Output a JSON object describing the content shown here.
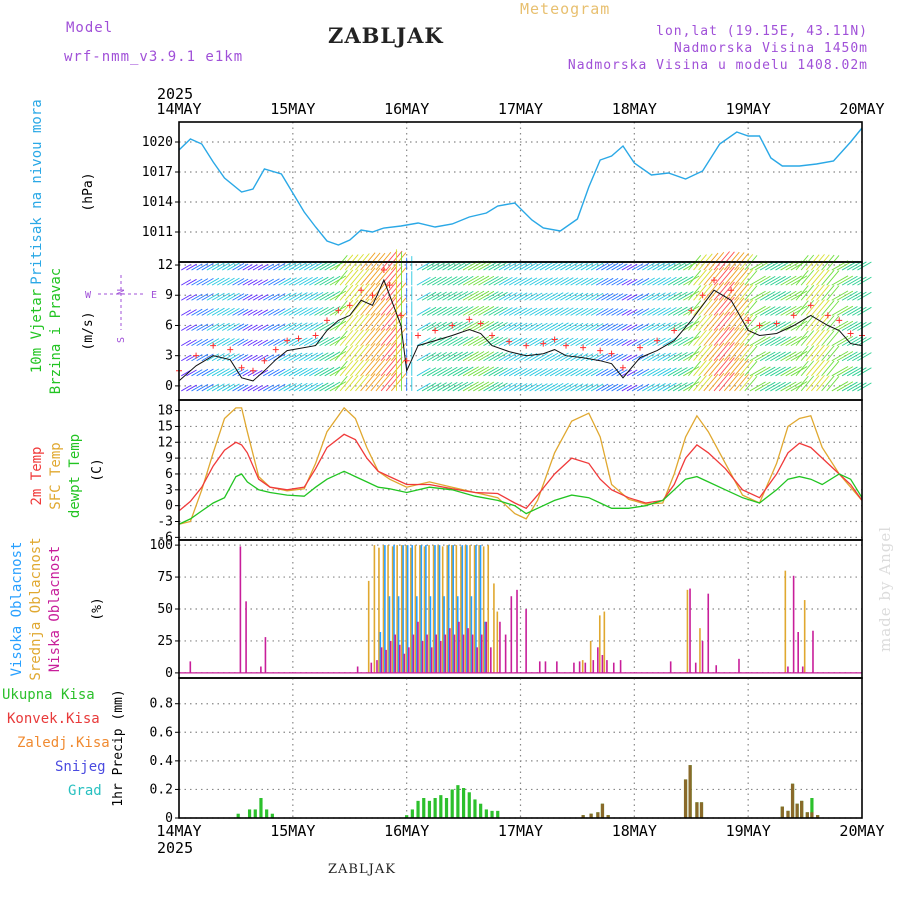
{
  "header": {
    "model_label": "Model",
    "model_name": "wrf-nmm_v3.9.1 e1km",
    "location": "ZABLJAK",
    "product": "Meteogram",
    "coords": "lon,lat (19.15E, 43.11N)",
    "altitude": "Nadmorska Visina 1450m",
    "model_altitude": "Nadmorska Visina u modelu 1408.02m",
    "footer_location": "ZABLJAK",
    "watermark": "made by Angel"
  },
  "colors": {
    "pressure": "#2aa8e6",
    "temp2m": "#f03a3a",
    "sfc": "#e0a830",
    "dewpt": "#22c422",
    "high_cloud": "#28a0ff",
    "mid_cloud": "#e0a830",
    "low_cloud": "#c81e9a",
    "total_precip": "#2cc02c",
    "conv_precip": "#e83a3a",
    "frz_precip": "#f08a30",
    "snow": "#4a4ae0",
    "hail": "#28c0c0",
    "header_purple": "#a050d8",
    "product_orange": "#e8c070"
  },
  "chart_data": [
    {
      "type": "line",
      "panel": "pressure",
      "ylabel": "Pritisak na nivou mora",
      "unit": "(hPa)",
      "x_start_label": "2025",
      "x_end_label": "2025",
      "x_ticks": [
        "14MAY",
        "15MAY",
        "16MAY",
        "17MAY",
        "18MAY",
        "19MAY",
        "20MAY"
      ],
      "xlim_days": [
        0,
        6
      ],
      "ylim": [
        1008,
        1022
      ],
      "yticks": [
        1011,
        1014,
        1017,
        1020
      ],
      "grid": true,
      "x": [
        0,
        0.1,
        0.2,
        0.3,
        0.4,
        0.55,
        0.65,
        0.75,
        0.9,
        1.0,
        1.1,
        1.2,
        1.3,
        1.4,
        1.5,
        1.6,
        1.7,
        1.8,
        1.95,
        2.1,
        2.25,
        2.4,
        2.55,
        2.7,
        2.8,
        2.95,
        3.1,
        3.2,
        3.35,
        3.5,
        3.6,
        3.7,
        3.8,
        3.9,
        4.0,
        4.15,
        4.3,
        4.45,
        4.6,
        4.75,
        4.9,
        5.0,
        5.1,
        5.2,
        5.3,
        5.45,
        5.6,
        5.75,
        5.9,
        6.0
      ],
      "values": [
        1019.2,
        1020.3,
        1019.8,
        1018.0,
        1016.4,
        1015.0,
        1015.3,
        1017.3,
        1016.8,
        1014.9,
        1013.0,
        1011.5,
        1010.1,
        1009.7,
        1010.2,
        1011.2,
        1011.0,
        1011.4,
        1011.6,
        1011.9,
        1011.5,
        1011.8,
        1012.5,
        1012.9,
        1013.6,
        1013.9,
        1012.2,
        1011.4,
        1011.1,
        1012.3,
        1015.5,
        1018.2,
        1018.6,
        1019.6,
        1017.9,
        1016.7,
        1016.9,
        1016.3,
        1017.1,
        1019.8,
        1021.0,
        1020.6,
        1020.6,
        1018.4,
        1017.6,
        1017.6,
        1017.8,
        1018.1,
        1020.0,
        1021.4
      ]
    },
    {
      "type": "line",
      "panel": "wind",
      "ylabel": "10m Vjetar Brzina i Pravac",
      "unit": "(m/s)",
      "ylim": [
        -1.4,
        12.3
      ],
      "yticks": [
        0,
        3,
        6,
        9,
        12
      ],
      "compass": "N, E, S, W",
      "grid": true,
      "x": [
        0,
        0.15,
        0.3,
        0.45,
        0.55,
        0.65,
        0.75,
        0.85,
        0.95,
        1.05,
        1.2,
        1.3,
        1.4,
        1.5,
        1.6,
        1.7,
        1.8,
        1.85,
        1.95,
        2.0,
        2.1,
        2.25,
        2.4,
        2.55,
        2.65,
        2.75,
        2.9,
        3.05,
        3.2,
        3.3,
        3.4,
        3.55,
        3.7,
        3.8,
        3.9,
        4.05,
        4.2,
        4.35,
        4.5,
        4.6,
        4.7,
        4.85,
        5.0,
        5.1,
        5.25,
        5.4,
        5.55,
        5.7,
        5.8,
        5.9,
        6.0
      ],
      "values": [
        0.5,
        2.0,
        3.0,
        2.6,
        0.8,
        0.5,
        1.5,
        2.6,
        3.5,
        3.7,
        4.0,
        5.5,
        6.5,
        7.0,
        8.5,
        8.0,
        10.5,
        9.0,
        6.0,
        1.5,
        4.0,
        4.5,
        5.0,
        5.6,
        5.2,
        4.0,
        3.4,
        3.0,
        3.2,
        3.6,
        3.0,
        2.8,
        2.5,
        2.2,
        0.8,
        2.8,
        3.5,
        4.5,
        6.5,
        8.0,
        9.5,
        8.5,
        5.5,
        5.0,
        5.2,
        6.0,
        7.0,
        6.0,
        5.5,
        4.2,
        4.0
      ]
    },
    {
      "type": "line",
      "panel": "temperature",
      "ylabel": "2m Temp / SFC Temp / dewpt Temp",
      "series_names": [
        "2m Temp",
        "SFC Temp",
        "dewpt Temp"
      ],
      "unit": "(C)",
      "ylim": [
        -6.5,
        20
      ],
      "yticks": [
        -6,
        -3,
        0,
        3,
        6,
        9,
        12,
        15,
        18
      ],
      "grid": true,
      "x": [
        0,
        0.1,
        0.2,
        0.3,
        0.4,
        0.5,
        0.55,
        0.6,
        0.7,
        0.8,
        0.95,
        1.1,
        1.2,
        1.3,
        1.45,
        1.55,
        1.65,
        1.75,
        1.85,
        2.0,
        2.2,
        2.4,
        2.6,
        2.8,
        2.95,
        3.05,
        3.15,
        3.3,
        3.45,
        3.6,
        3.7,
        3.8,
        3.95,
        4.1,
        4.25,
        4.35,
        4.45,
        4.55,
        4.65,
        4.8,
        4.95,
        5.1,
        5.25,
        5.35,
        5.45,
        5.55,
        5.65,
        5.8,
        5.9,
        6.0
      ],
      "series": [
        {
          "name": "2m Temp",
          "values": [
            -1.0,
            0.8,
            3.5,
            7.5,
            10.5,
            12.0,
            11.5,
            10.0,
            5.0,
            3.5,
            3.0,
            3.5,
            7.0,
            11.0,
            13.5,
            12.5,
            9.0,
            6.5,
            5.5,
            4.0,
            4.0,
            3.2,
            2.5,
            2.3,
            0.5,
            -0.5,
            2.0,
            6.0,
            9.0,
            8.0,
            5.0,
            3.0,
            1.5,
            0.5,
            1.0,
            4.0,
            9.0,
            11.5,
            10.0,
            7.0,
            3.0,
            1.5,
            6.0,
            10.0,
            11.8,
            11.0,
            9.0,
            6.0,
            4.0,
            1.0
          ]
        },
        {
          "name": "SFC Temp",
          "values": [
            -3.5,
            -3.0,
            3.0,
            10.0,
            16.5,
            18.5,
            18.5,
            14.0,
            5.5,
            3.5,
            2.8,
            3.2,
            8.0,
            14.0,
            18.5,
            16.5,
            11.0,
            6.5,
            5.0,
            3.5,
            4.5,
            3.5,
            2.5,
            1.5,
            -1.5,
            -2.5,
            1.0,
            10.0,
            16.0,
            17.5,
            13.0,
            4.0,
            1.2,
            0.3,
            0.5,
            6.0,
            13.0,
            17.0,
            14.0,
            8.0,
            2.0,
            0.5,
            8.0,
            15.0,
            16.5,
            17.0,
            11.0,
            6.0,
            3.5,
            1.0
          ]
        },
        {
          "name": "dewpt Temp",
          "values": [
            -3.5,
            -2.5,
            -1.0,
            0.5,
            1.5,
            5.5,
            6.0,
            4.5,
            3.0,
            2.5,
            2.0,
            1.8,
            3.5,
            5.0,
            6.5,
            5.5,
            4.5,
            3.5,
            3.2,
            2.5,
            3.5,
            3.0,
            1.8,
            1.0,
            0.0,
            -1.5,
            -0.5,
            1.0,
            2.0,
            1.5,
            0.5,
            -0.5,
            -0.5,
            0.0,
            1.0,
            3.0,
            5.0,
            5.5,
            4.5,
            3.0,
            1.5,
            0.5,
            3.0,
            5.0,
            5.5,
            5.0,
            4.0,
            6.0,
            5.0,
            1.5
          ]
        }
      ]
    },
    {
      "type": "bar",
      "panel": "cloud",
      "ylabel": "Visoka Oblacnost / Srednja Oblacnost / Niska Oblacnost",
      "series_names": [
        "Visoka Oblacnost",
        "Srednja Oblacnost",
        "Niska Oblacnost"
      ],
      "unit": "(%)",
      "ylim": [
        -4,
        104
      ],
      "yticks": [
        0,
        25,
        50,
        75,
        100
      ],
      "grid": true,
      "bars": [
        [
          0.08,
          0,
          0,
          9
        ],
        [
          0.52,
          0,
          0,
          99
        ],
        [
          0.57,
          0,
          0,
          56
        ],
        [
          0.7,
          0,
          0,
          5
        ],
        [
          0.74,
          0,
          0,
          28
        ],
        [
          1.55,
          0,
          0,
          5
        ],
        [
          1.67,
          0,
          72,
          8
        ],
        [
          1.72,
          0,
          100,
          10
        ],
        [
          1.76,
          32,
          98,
          20
        ],
        [
          1.8,
          100,
          100,
          18
        ],
        [
          1.84,
          60,
          100,
          25
        ],
        [
          1.88,
          100,
          99,
          30
        ],
        [
          1.92,
          60,
          100,
          22
        ],
        [
          1.96,
          100,
          100,
          15
        ],
        [
          2.0,
          100,
          100,
          20
        ],
        [
          2.04,
          100,
          98,
          30
        ],
        [
          2.08,
          60,
          100,
          40
        ],
        [
          2.12,
          100,
          100,
          25
        ],
        [
          2.16,
          100,
          99,
          30
        ],
        [
          2.2,
          60,
          100,
          20
        ],
        [
          2.24,
          100,
          100,
          30
        ],
        [
          2.28,
          100,
          100,
          25
        ],
        [
          2.32,
          60,
          99,
          30
        ],
        [
          2.36,
          100,
          100,
          35
        ],
        [
          2.4,
          100,
          100,
          30
        ],
        [
          2.44,
          60,
          100,
          40
        ],
        [
          2.48,
          100,
          99,
          30
        ],
        [
          2.52,
          100,
          100,
          35
        ],
        [
          2.56,
          60,
          100,
          30
        ],
        [
          2.6,
          100,
          100,
          20
        ],
        [
          2.64,
          100,
          100,
          30
        ],
        [
          2.68,
          40,
          99,
          40
        ],
        [
          2.72,
          0,
          100,
          20
        ],
        [
          2.77,
          0,
          70,
          0
        ],
        [
          2.8,
          0,
          48,
          40
        ],
        [
          2.85,
          0,
          0,
          30
        ],
        [
          2.9,
          0,
          0,
          60
        ],
        [
          2.95,
          0,
          0,
          65
        ],
        [
          3.03,
          0,
          0,
          50
        ],
        [
          3.15,
          0,
          0,
          9
        ],
        [
          3.2,
          0,
          0,
          9
        ],
        [
          3.3,
          0,
          0,
          9
        ],
        [
          3.45,
          0,
          0,
          8
        ],
        [
          3.5,
          0,
          0,
          9
        ],
        [
          3.55,
          0,
          10,
          8
        ],
        [
          3.62,
          0,
          25,
          10
        ],
        [
          3.66,
          0,
          0,
          20
        ],
        [
          3.7,
          0,
          45,
          14
        ],
        [
          3.74,
          0,
          48,
          10
        ],
        [
          3.8,
          0,
          0,
          8
        ],
        [
          3.86,
          0,
          0,
          10
        ],
        [
          4.3,
          0,
          0,
          9
        ],
        [
          4.47,
          0,
          65,
          66
        ],
        [
          4.52,
          0,
          0,
          8
        ],
        [
          4.58,
          0,
          35,
          25
        ],
        [
          4.63,
          0,
          0,
          62
        ],
        [
          4.7,
          0,
          0,
          6
        ],
        [
          4.9,
          0,
          0,
          11
        ],
        [
          5.33,
          0,
          80,
          5
        ],
        [
          5.38,
          0,
          0,
          76
        ],
        [
          5.42,
          0,
          0,
          32
        ],
        [
          5.46,
          0,
          0,
          5
        ],
        [
          5.5,
          0,
          57,
          0
        ],
        [
          5.55,
          0,
          0,
          33
        ]
      ]
    },
    {
      "type": "bar",
      "panel": "precipitation",
      "ylabel": "1hr Precip",
      "legend": [
        "Ukupna Kisa",
        "Konvek.Kisa",
        "Zaledj.Kisa",
        "Snijeg",
        "Grad"
      ],
      "unit": "(mm)",
      "ylim": [
        0,
        0.98
      ],
      "yticks": [
        0,
        0.2,
        0.4,
        0.6,
        0.8
      ],
      "grid": true,
      "bars": [
        [
          0.52,
          0.03,
          0
        ],
        [
          0.62,
          0.06,
          0
        ],
        [
          0.67,
          0.06,
          0
        ],
        [
          0.72,
          0.14,
          0
        ],
        [
          0.77,
          0.06,
          0
        ],
        [
          0.82,
          0.03,
          0
        ],
        [
          2.0,
          0.02,
          0
        ],
        [
          2.05,
          0.06,
          0
        ],
        [
          2.1,
          0.12,
          0
        ],
        [
          2.15,
          0.14,
          0
        ],
        [
          2.2,
          0.12,
          0
        ],
        [
          2.25,
          0.14,
          0
        ],
        [
          2.3,
          0.16,
          0
        ],
        [
          2.35,
          0.14,
          0
        ],
        [
          2.4,
          0.2,
          0
        ],
        [
          2.45,
          0.23,
          0
        ],
        [
          2.5,
          0.21,
          0
        ],
        [
          2.55,
          0.18,
          0
        ],
        [
          2.6,
          0.13,
          0
        ],
        [
          2.65,
          0.1,
          0
        ],
        [
          2.7,
          0.06,
          0
        ],
        [
          2.75,
          0.05,
          0
        ],
        [
          2.8,
          0.05,
          0
        ],
        [
          3.55,
          0.02,
          0.02
        ],
        [
          3.62,
          0.03,
          0.03
        ],
        [
          3.68,
          0.04,
          0.04
        ],
        [
          3.72,
          0.1,
          0.1
        ],
        [
          3.77,
          0.02,
          0.02
        ],
        [
          4.45,
          0.27,
          0.27
        ],
        [
          4.49,
          0.37,
          0.37
        ],
        [
          4.55,
          0.11,
          0.11
        ],
        [
          4.59,
          0.11,
          0.11
        ],
        [
          5.3,
          0.08,
          0.08
        ],
        [
          5.35,
          0.05,
          0.05
        ],
        [
          5.39,
          0.24,
          0.24
        ],
        [
          5.43,
          0.1,
          0.1
        ],
        [
          5.47,
          0.12,
          0.12
        ],
        [
          5.52,
          0.04,
          0.04
        ],
        [
          5.56,
          0.14,
          0.04
        ],
        [
          5.61,
          0.02,
          0.02
        ]
      ]
    }
  ]
}
